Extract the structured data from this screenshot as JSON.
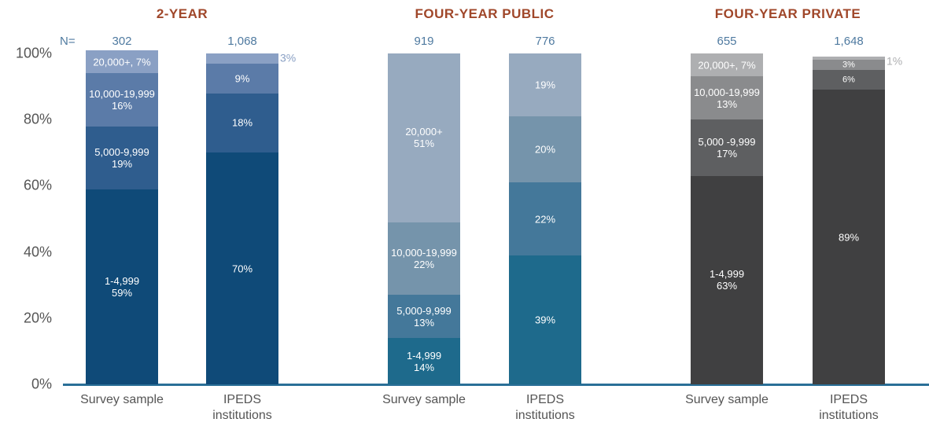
{
  "chart_data": {
    "type": "bar",
    "stacked": true,
    "ylim": [
      0,
      100
    ],
    "yticks": [
      {
        "value": 0,
        "label": "0%"
      },
      {
        "value": 20,
        "label": "20%"
      },
      {
        "value": 40,
        "label": "40%"
      },
      {
        "value": 60,
        "label": "60%"
      },
      {
        "value": 80,
        "label": "80%"
      },
      {
        "value": 100,
        "label": "100%"
      }
    ],
    "n_label": "N=",
    "groups": [
      {
        "title": "2-YEAR",
        "categories": [
          "Survey sample",
          "IPEDS institutions"
        ],
        "n": [
          "302",
          "1,068"
        ],
        "series": [
          {
            "color": "#0f4a78",
            "values": [
              59,
              70
            ],
            "value_labels": [
              "1-4,999\n59%",
              "70%"
            ]
          },
          {
            "color": "#2f5d8e",
            "values": [
              19,
              18
            ],
            "value_labels": [
              "5,000-9,999\n19%",
              "18%"
            ]
          },
          {
            "color": "#5b7ba8",
            "values": [
              16,
              9
            ],
            "value_labels": [
              "10,000-19,999\n16%",
              "9%"
            ]
          },
          {
            "color": "#8aa0c4",
            "values": [
              7,
              3
            ],
            "value_labels": [
              "20,000+, 7%",
              "3%"
            ]
          }
        ]
      },
      {
        "title": "FOUR-YEAR PUBLIC",
        "categories": [
          "Survey sample",
          "IPEDS institutions"
        ],
        "n": [
          "919",
          "776"
        ],
        "series": [
          {
            "color": "#1e6a8c",
            "values": [
              14,
              39
            ],
            "value_labels": [
              "1-4,999\n14%",
              "39%"
            ]
          },
          {
            "color": "#44789a",
            "values": [
              13,
              22
            ],
            "value_labels": [
              "5,000-9,999\n13%",
              "22%"
            ]
          },
          {
            "color": "#7594ab",
            "values": [
              22,
              20
            ],
            "value_labels": [
              "10,000-19,999\n22%",
              "20%"
            ]
          },
          {
            "color": "#97aabf",
            "values": [
              51,
              19
            ],
            "value_labels": [
              "20,000+\n51%",
              "19%"
            ]
          }
        ]
      },
      {
        "title": "FOUR-YEAR PRIVATE",
        "categories": [
          "Survey sample",
          "IPEDS institutions"
        ],
        "n": [
          "655",
          "1,648"
        ],
        "series": [
          {
            "color": "#404041",
            "values": [
              63,
              89
            ],
            "value_labels": [
              "1-4,999\n63%",
              "89%"
            ]
          },
          {
            "color": "#5e5f61",
            "values": [
              17,
              6
            ],
            "value_labels": [
              "5,000 -9,999\n17%",
              "6%"
            ]
          },
          {
            "color": "#8a8b8d",
            "values": [
              13,
              3
            ],
            "value_labels": [
              "10,000-19,999\n13%",
              "3%"
            ]
          },
          {
            "color": "#aeafb1",
            "values": [
              7,
              1
            ],
            "value_labels": [
              "20,000+, 7%",
              "1%"
            ]
          }
        ]
      }
    ]
  }
}
